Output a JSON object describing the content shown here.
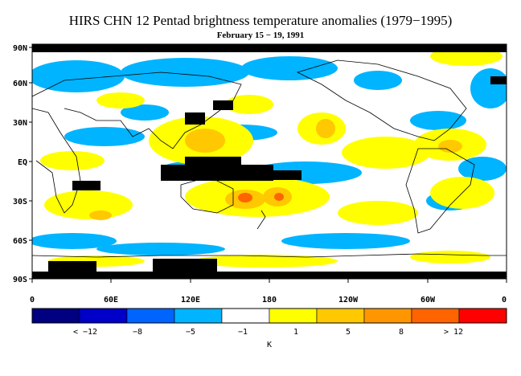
{
  "title": "HIRS CHN 12 Pentad brightness temperature anomalies (1979−1995)",
  "subtitle": "February 15 − 19, 1991",
  "lat_labels": [
    "90N",
    "60N",
    "30N",
    "EQ",
    "30S",
    "60S",
    "90S"
  ],
  "lon_labels": [
    "0",
    "60E",
    "120E",
    "180",
    "120W",
    "60W",
    "0"
  ],
  "colorbar": {
    "unit": "K",
    "colors": [
      "#000080",
      "#0000c8",
      "#0064ff",
      "#00b4ff",
      "#ffffff",
      "#ffff00",
      "#ffc800",
      "#ff9600",
      "#ff6400",
      "#ff0000"
    ],
    "tick_labels": [
      "< −12",
      "−8",
      "−5",
      "−1",
      "1",
      "5",
      "8",
      "> 12"
    ],
    "missing_color": "#000000"
  }
}
